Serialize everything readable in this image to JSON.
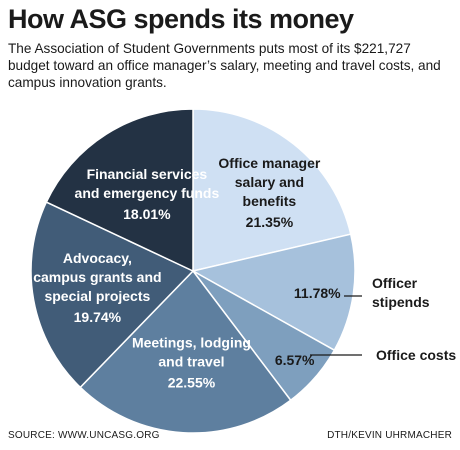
{
  "title": "How ASG spends its money",
  "subtitle": "The Association of Student Governments puts most of its $221,727 budget toward an office manager’s salary, meeting and travel costs, and campus innovation grants.",
  "source": "SOURCE: WWW.UNCASG.ORG",
  "credit": "DTH/KEVIN UHRMACHER",
  "chart_data": {
    "type": "pie",
    "total_budget": "$221,727",
    "slices": [
      {
        "label": "Office manager salary and benefits",
        "label_lines": [
          "Office manager",
          "salary and",
          "benefits"
        ],
        "value": 21.35,
        "value_text": "21.35%",
        "color": "#cfe0f3",
        "text_color": "#1a1a1a",
        "label_position": "inside"
      },
      {
        "label": "Officer stipends",
        "label_lines": [
          "Officer",
          "stipends"
        ],
        "value": 11.78,
        "value_text": "11.78%",
        "color": "#a6c1dc",
        "text_color": "#1a1a1a",
        "label_position": "outside"
      },
      {
        "label": "Office costs",
        "label_lines": [
          "Office costs"
        ],
        "value": 6.57,
        "value_text": "6.57%",
        "color": "#7e9fbe",
        "text_color": "#1a1a1a",
        "label_position": "outside"
      },
      {
        "label": "Meetings, lodging and travel",
        "label_lines": [
          "Meetings, lodging",
          "and travel"
        ],
        "value": 22.55,
        "value_text": "22.55%",
        "color": "#5e7f9f",
        "text_color": "#ffffff",
        "label_position": "inside"
      },
      {
        "label": "Advocacy, campus grants and special projects",
        "label_lines": [
          "Advocacy,",
          "campus grants and",
          "special projects"
        ],
        "value": 19.74,
        "value_text": "19.74%",
        "color": "#415c78",
        "text_color": "#ffffff",
        "label_position": "inside"
      },
      {
        "label": "Financial services and emergency funds",
        "label_lines": [
          "Financial services",
          "and emergency funds"
        ],
        "value": 18.01,
        "value_text": "18.01%",
        "color": "#233244",
        "text_color": "#ffffff",
        "label_position": "inside"
      }
    ]
  }
}
